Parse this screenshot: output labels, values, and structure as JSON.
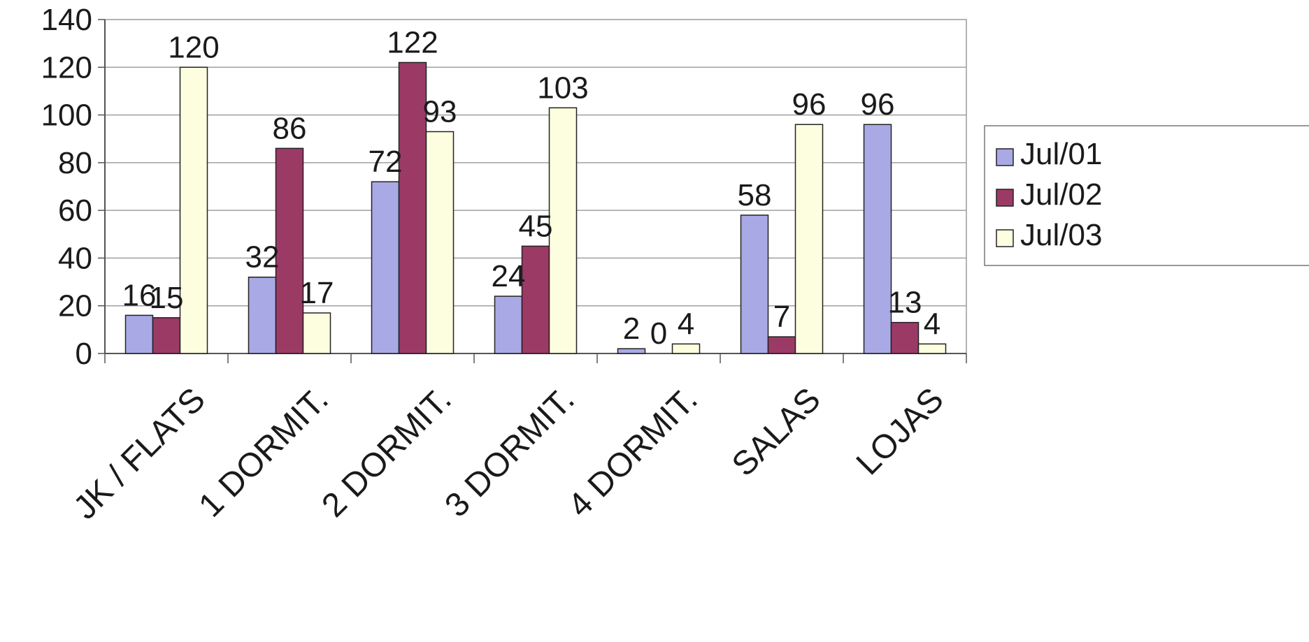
{
  "chart_data": {
    "type": "bar",
    "title": "",
    "xlabel": "",
    "ylabel": "",
    "ylim": [
      0,
      140
    ],
    "ytick_step": 20,
    "yticks": [
      "0",
      "20",
      "40",
      "60",
      "80",
      "100",
      "120",
      "140"
    ],
    "grid": true,
    "legend_position": "right",
    "categories": [
      "JK / FLATS",
      "1 DORMIT.",
      "2 DORMIT.",
      "3 DORMIT.",
      "4 DORMIT.",
      "SALAS",
      "LOJAS"
    ],
    "series": [
      {
        "name": "Jul/01",
        "color": "#a9a9e6",
        "values": [
          16,
          32,
          72,
          24,
          2,
          58,
          96
        ]
      },
      {
        "name": "Jul/02",
        "color": "#9c3a66",
        "values": [
          15,
          86,
          122,
          45,
          0,
          7,
          13
        ]
      },
      {
        "name": "Jul/03",
        "color": "#fdfde0",
        "values": [
          120,
          17,
          93,
          103,
          4,
          96,
          4
        ]
      }
    ]
  }
}
